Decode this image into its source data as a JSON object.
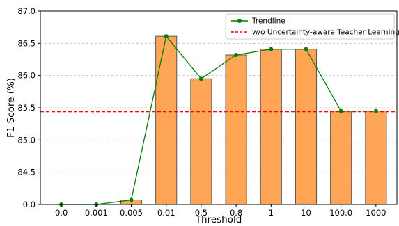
{
  "chart_data": {
    "type": "bar",
    "xlabel": "Threshold",
    "ylabel": "F1 Score (%)",
    "categories": [
      "0.0",
      "0.001",
      "0.005",
      "0.01",
      "0.5",
      "0.8",
      "1",
      "10",
      "100.0",
      "1000"
    ],
    "bar_values": [
      0.0,
      0.0,
      84.07,
      86.61,
      85.95,
      86.32,
      86.41,
      86.41,
      85.45,
      85.45
    ],
    "trendline": {
      "name": "Trendline",
      "type": "line",
      "values": [
        0.0,
        0.0,
        84.07,
        86.61,
        85.95,
        86.32,
        86.41,
        86.41,
        85.45,
        85.45
      ],
      "color": "#008000"
    },
    "reference_line": {
      "name": "w/o Uncertainty-aware Teacher Learning",
      "value": 85.44,
      "color": "#ff0000",
      "style": "dashed"
    },
    "y_ticks": [
      "0.0",
      "84.5",
      "85.0",
      "85.5",
      "86.0",
      "86.5",
      "87.0"
    ],
    "y_tick_values": [
      84.0,
      84.5,
      85.0,
      85.5,
      86.0,
      86.5,
      87.0
    ],
    "y_axis_break": {
      "displayed_bottom": 84.0,
      "bottom_label": "0.0"
    },
    "ylim": [
      84.0,
      87.0
    ],
    "grid": {
      "y": true,
      "x": false
    },
    "legend_position": "top-right",
    "colors": {
      "bar_fill": "#ffa555",
      "bar_edge": "#555555",
      "grid": "#bbbbbb"
    }
  }
}
